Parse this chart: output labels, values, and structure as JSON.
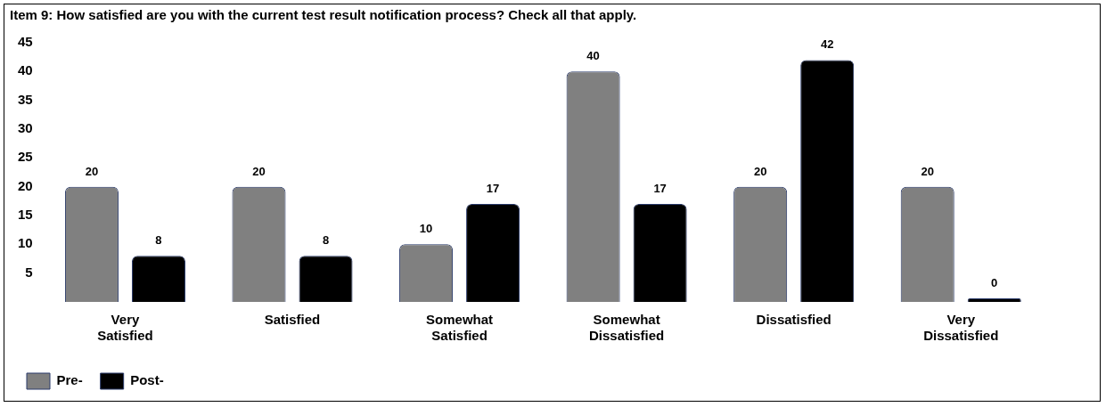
{
  "chart_data": {
    "type": "bar",
    "title": "Item 9: How satisfied are you with the current test result notification process? Check all that apply.",
    "categories": [
      "Very Satisfied",
      "Satisfied",
      "Somewhat Satisfied",
      "Somewhat Dissatisfied",
      "Dissatisfied",
      "Very Dissatisfied"
    ],
    "series": [
      {
        "name": "Pre-",
        "color": "#808080",
        "values": [
          20,
          20,
          10,
          40,
          20,
          20
        ]
      },
      {
        "name": "Post-",
        "color": "#000000",
        "values": [
          8,
          8,
          17,
          17,
          42,
          0
        ]
      }
    ],
    "ylim": [
      0,
      45
    ],
    "yticks": [
      5,
      10,
      15,
      20,
      25,
      30,
      35,
      40,
      45
    ],
    "grid": false,
    "legend": "bottom",
    "data_labels": true
  }
}
